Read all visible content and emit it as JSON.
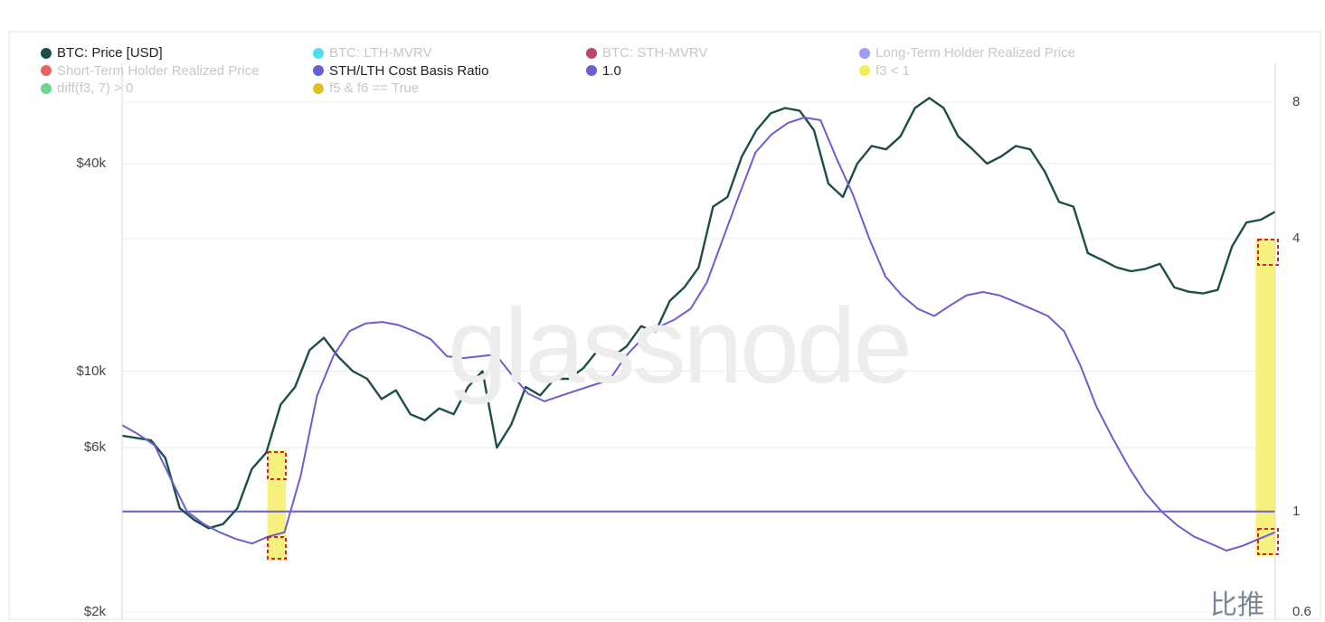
{
  "chart_data": {
    "type": "line",
    "legend": [
      {
        "label": "BTC: Price [USD]",
        "color": "#1f4e4a",
        "active": true
      },
      {
        "label": "BTC: LTH-MVRV",
        "color": "#2fd6ec",
        "active": false
      },
      {
        "label": "BTC: STH-MVRV",
        "color": "#b0264f",
        "active": false
      },
      {
        "label": "Long-Term Holder Realized Price",
        "color": "#8c8cf2",
        "active": false
      },
      {
        "label": "Short-Term Holder Realized Price",
        "color": "#e54848",
        "active": false
      },
      {
        "label": "STH/LTH Cost Basis Ratio",
        "color": "#6a5fd1",
        "active": true
      },
      {
        "label": "1.0",
        "color": "#6a5fd1",
        "active": true
      },
      {
        "label": "f3 < 1",
        "color": "#f1ea3a",
        "active": false
      },
      {
        "label": "diff(f3, 7) > 0",
        "color": "#4bd27a",
        "active": false
      },
      {
        "label": "f5 & f6 == True",
        "color": "#d9b600",
        "active": false
      }
    ],
    "left_axis": {
      "scale": "log",
      "ticks": [
        "$2k",
        "$6k",
        "$10k",
        "$40k"
      ],
      "tick_values": [
        2000,
        6000,
        10000,
        40000
      ]
    },
    "right_axis": {
      "scale": "log",
      "ticks": [
        "0.6",
        "1",
        "4",
        "8"
      ],
      "tick_values": [
        0.6,
        1,
        4,
        8
      ]
    },
    "series": [
      {
        "name": "BTC: Price [USD]",
        "axis": "left",
        "color": "#1f4e4a",
        "values": [
          6500,
          6400,
          6300,
          5600,
          4000,
          3700,
          3500,
          3600,
          4000,
          5200,
          5800,
          8000,
          9000,
          11500,
          12500,
          11000,
          10000,
          9500,
          8300,
          8800,
          7500,
          7200,
          7800,
          7500,
          9000,
          10000,
          6000,
          7000,
          9000,
          8500,
          9500,
          9500,
          10200,
          11500,
          11000,
          11800,
          13500,
          13000,
          16000,
          17500,
          20000,
          30000,
          32000,
          42000,
          50000,
          56000,
          58000,
          57000,
          50000,
          35000,
          32000,
          40000,
          45000,
          44000,
          48000,
          58000,
          62000,
          58000,
          48000,
          44000,
          40000,
          42000,
          45000,
          44000,
          38000,
          31000,
          30000,
          22000,
          21000,
          20000,
          19500,
          19800,
          20500,
          17500,
          17000,
          16800,
          17200,
          23000,
          27000,
          27500,
          29000
        ]
      },
      {
        "name": "STH/LTH Cost Basis Ratio",
        "axis": "right",
        "color": "#6a5fd1",
        "values": [
          1.55,
          1.48,
          1.4,
          1.18,
          1.0,
          0.94,
          0.9,
          0.87,
          0.85,
          0.88,
          0.9,
          1.2,
          1.8,
          2.2,
          2.5,
          2.6,
          2.62,
          2.58,
          2.5,
          2.4,
          2.2,
          2.18,
          2.2,
          2.22,
          2.0,
          1.82,
          1.75,
          1.8,
          1.85,
          1.9,
          1.95,
          2.2,
          2.4,
          2.55,
          2.65,
          2.8,
          3.2,
          4.0,
          5.0,
          6.2,
          6.8,
          7.2,
          7.4,
          7.3,
          6.0,
          5.0,
          4.0,
          3.3,
          3.0,
          2.8,
          2.7,
          2.85,
          3.0,
          3.05,
          3.0,
          2.9,
          2.8,
          2.7,
          2.5,
          2.1,
          1.7,
          1.45,
          1.25,
          1.1,
          1.0,
          0.93,
          0.88,
          0.85,
          0.82,
          0.84,
          0.87,
          0.9
        ]
      }
    ],
    "baseline": {
      "label": "1.0",
      "value": 1.0,
      "axis": "right"
    },
    "highlighted_periods": [
      {
        "label": "f3 < 1",
        "start_fraction": 0.126,
        "end_fraction": 0.142
      },
      {
        "label": "f3 < 1",
        "start_fraction": 0.983,
        "end_fraction": 1.0
      }
    ],
    "watermark": "glassnode",
    "grid": true
  },
  "brand": "比推"
}
